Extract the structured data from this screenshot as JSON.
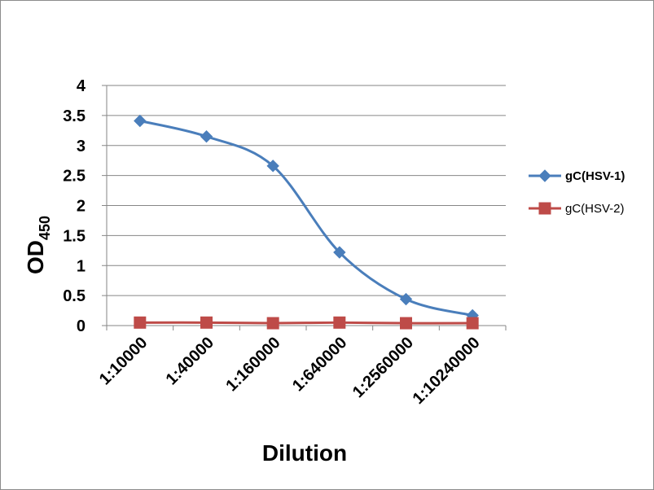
{
  "chart_data": {
    "type": "line",
    "categories": [
      "1:10000",
      "1:40000",
      "1:160000",
      "1:640000",
      "1:2560000",
      "1:10240000"
    ],
    "series": [
      {
        "name": "gC(HSV-1)",
        "values": [
          3.41,
          3.15,
          2.66,
          1.22,
          0.44,
          0.17
        ],
        "color": "#4a7ebb",
        "marker": "diamond",
        "legend_bold": true
      },
      {
        "name": "gC(HSV-2)",
        "values": [
          0.05,
          0.05,
          0.04,
          0.05,
          0.04,
          0.04
        ],
        "color": "#be4b48",
        "marker": "square",
        "legend_bold": false
      }
    ],
    "xlabel": "Dilution",
    "ylabel_main": "OD",
    "ylabel_sub": "450",
    "ylim": [
      0,
      4
    ],
    "yticks": [
      "0",
      "0.5",
      "1",
      "1.5",
      "2",
      "2.5",
      "3",
      "3.5",
      "4"
    ],
    "grid": true,
    "smooth": true,
    "legend_position": "right"
  }
}
